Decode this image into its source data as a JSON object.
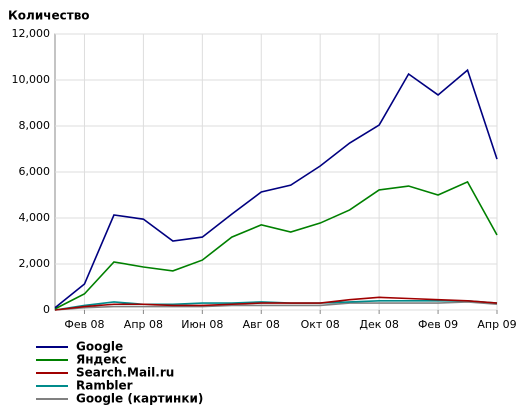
{
  "chart_data": {
    "type": "line",
    "ylabel": "Количество",
    "categories": [
      null,
      "Фев 08",
      null,
      "Апр 08",
      null,
      "Июн 08",
      null,
      "Авг 08",
      null,
      "Окт 08",
      null,
      "Дек 08",
      null,
      "Фев 09",
      null,
      "Апр 09"
    ],
    "series": [
      {
        "name": "Google",
        "color": "#000080",
        "values": [
          100,
          1130,
          4130,
          3950,
          3000,
          3170,
          4170,
          5130,
          5430,
          6260,
          7260,
          8040,
          10260,
          9350,
          10430,
          6560
        ]
      },
      {
        "name": "Яндекс",
        "color": "#008000",
        "values": [
          50,
          700,
          2090,
          1870,
          1700,
          2170,
          3170,
          3700,
          3390,
          3780,
          4350,
          5220,
          5390,
          5000,
          5570,
          3260
        ]
      },
      {
        "name": "Search.Mail.ru",
        "color": "#a00000",
        "values": [
          0,
          150,
          250,
          250,
          200,
          200,
          250,
          300,
          300,
          300,
          450,
          550,
          500,
          450,
          400,
          300
        ]
      },
      {
        "name": "Rambler",
        "color": "#008b8b",
        "values": [
          0,
          200,
          350,
          250,
          250,
          300,
          300,
          350,
          300,
          300,
          350,
          400,
          400,
          400,
          400,
          300
        ]
      },
      {
        "name": "Google (картинки)",
        "color": "#808080",
        "values": [
          0,
          100,
          150,
          150,
          150,
          150,
          200,
          200,
          200,
          200,
          300,
          300,
          300,
          300,
          350,
          250
        ]
      }
    ],
    "ylim": [
      0,
      12000
    ],
    "yticks": [
      0,
      {
        "value": 2000,
        "label": "2,000"
      },
      {
        "value": 4000,
        "label": "4,000"
      },
      {
        "value": 6000,
        "label": "6,000"
      },
      {
        "value": 8000,
        "label": "8,000"
      },
      {
        "value": 10000,
        "label": "10,000"
      },
      {
        "value": 12000,
        "label": "12,000"
      }
    ],
    "grid": true
  }
}
